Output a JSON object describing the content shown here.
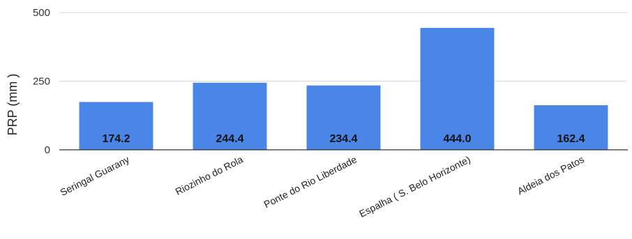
{
  "chart_data": {
    "type": "bar",
    "title": "",
    "xlabel": "",
    "ylabel": "PRP (mm )",
    "ylim": [
      0,
      500
    ],
    "yticks": [
      0,
      250,
      500
    ],
    "grid": true,
    "categories": [
      "Seringal Guarany",
      "Riozinho do Rola",
      "Ponte do Rio Liberdade",
      "Espalha ( S. Belo Horizonte)",
      "Aldeia dos Patos"
    ],
    "values": [
      174.2,
      244.4,
      234.4,
      444.0,
      162.4
    ],
    "data_labels": [
      "174.2",
      "244.4",
      "234.4",
      "444.0",
      "162.4"
    ],
    "bar_color": "#4a86e8"
  }
}
